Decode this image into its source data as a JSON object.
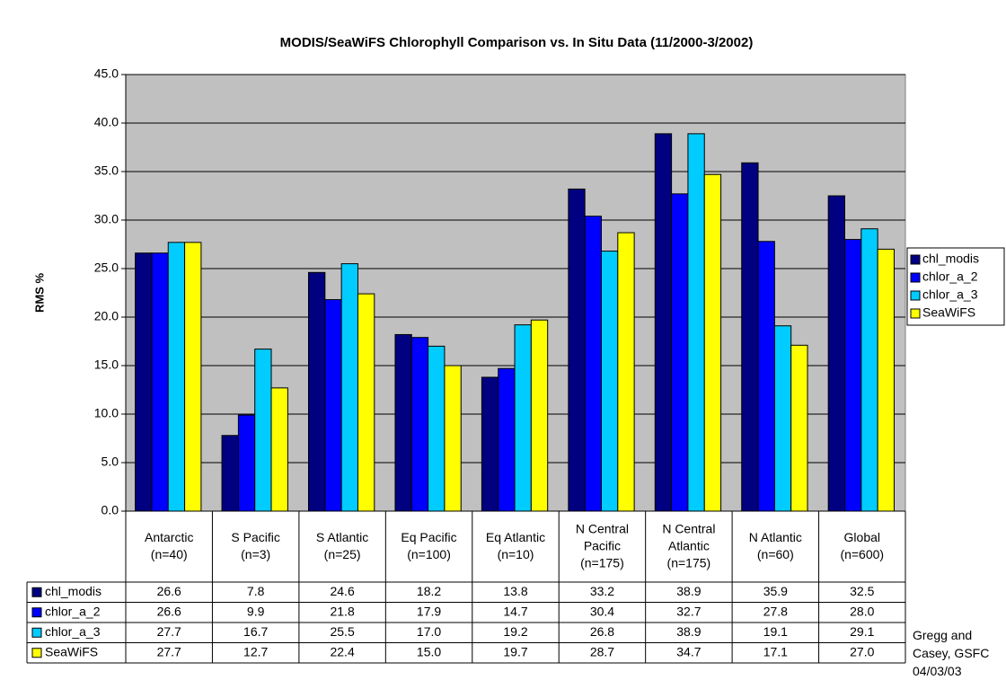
{
  "chart_data": {
    "type": "bar",
    "title": "MODIS/SeaWiFS Chlorophyll Comparison vs. In Situ Data (11/2000-3/2002)",
    "y_label": "RMS %",
    "categories": [
      "Antarctic\n(n=40)",
      "S Pacific\n(n=3)",
      "S Atlantic\n(n=25)",
      "Eq Pacific\n(n=100)",
      "Eq Atlantic\n(n=10)",
      "N Central\nPacific\n(n=175)",
      "N Central\nAtlantic\n(n=175)",
      "N Atlantic\n(n=60)",
      "Global\n(n=600)"
    ],
    "series": [
      {
        "name": "chl_modis",
        "color": "#000080",
        "values": [
          26.6,
          7.8,
          24.6,
          18.2,
          13.8,
          33.2,
          38.9,
          35.9,
          32.5
        ],
        "value_labels": [
          "26.6",
          "7.8",
          "24.6",
          "18.2",
          "13.8",
          "33.2",
          "38.9",
          "35.9",
          "32.5"
        ]
      },
      {
        "name": "chlor_a_2",
        "color": "#0000ff",
        "values": [
          26.6,
          9.9,
          21.8,
          17.9,
          14.7,
          30.4,
          32.7,
          27.8,
          28.0
        ],
        "value_labels": [
          "26.6",
          "9.9",
          "21.8",
          "17.9",
          "14.7",
          "30.4",
          "32.7",
          "27.8",
          "28.0"
        ]
      },
      {
        "name": "chlor_a_3",
        "color": "#00ccff",
        "values": [
          27.7,
          16.7,
          25.5,
          17.0,
          19.2,
          26.8,
          38.9,
          19.1,
          29.1
        ],
        "value_labels": [
          "27.7",
          "16.7",
          "25.5",
          "17.0",
          "19.2",
          "26.8",
          "38.9",
          "19.1",
          "29.1"
        ]
      },
      {
        "name": "SeaWiFS",
        "color": "#ffff00",
        "values": [
          27.7,
          12.7,
          22.4,
          15.0,
          19.7,
          28.7,
          34.7,
          17.1,
          27.0
        ],
        "value_labels": [
          "27.7",
          "12.7",
          "22.4",
          "15.0",
          "19.7",
          "28.7",
          "34.7",
          "17.1",
          "27.0"
        ]
      }
    ],
    "ylim": [
      0,
      45
    ],
    "yticks": [
      {
        "value": 0,
        "label": "0.0"
      },
      {
        "value": 5,
        "label": "5.0"
      },
      {
        "value": 10,
        "label": "10.0"
      },
      {
        "value": 15,
        "label": "15.0"
      },
      {
        "value": 20,
        "label": "20.0"
      },
      {
        "value": 25,
        "label": "25.0"
      },
      {
        "value": 30,
        "label": "30.0"
      },
      {
        "value": 35,
        "label": "35.0"
      },
      {
        "value": 40,
        "label": "40.0"
      },
      {
        "value": 45,
        "label": "45.0"
      }
    ],
    "grid": true,
    "plot_background": "#c0c0c0",
    "legend": "right",
    "annotation": "Gregg and\nCasey, GSFC\n04/03/03"
  }
}
